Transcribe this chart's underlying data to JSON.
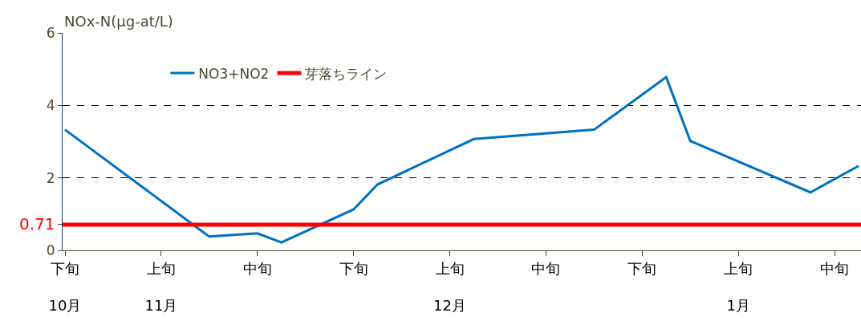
{
  "chart_data": {
    "type": "line",
    "ylabel": "NOx-N(μg-at/L)",
    "categories": [
      "下旬\n10月",
      null,
      null,
      null,
      "上旬\n11月",
      null,
      null,
      null,
      "中旬",
      null,
      null,
      null,
      "下旬",
      null,
      null,
      null,
      "上旬\n12月",
      null,
      null,
      null,
      "中旬",
      null,
      null,
      null,
      "下旬",
      null,
      null,
      null,
      "上旬\n1月",
      null,
      null,
      null,
      "中旬",
      null
    ],
    "ylim": [
      0,
      6
    ],
    "yticks": [
      0,
      {
        "value": 0.71,
        "label": "0.71"
      },
      2,
      4,
      6
    ],
    "grid": "y",
    "legend": "top left",
    "series": [
      {
        "name": "NO3+NO2",
        "color": "#0070c0",
        "values": [
          3.33,
          null,
          null,
          null,
          null,
          null,
          0.38,
          null,
          0.47,
          0.22,
          null,
          null,
          1.13,
          1.82,
          null,
          null,
          null,
          3.07,
          null,
          null,
          null,
          null,
          3.33,
          null,
          null,
          4.78,
          3.02,
          null,
          null,
          null,
          null,
          1.6,
          null,
          2.33
        ]
      }
    ],
    "ref_lines": [
      {
        "axis": "y",
        "value": 0.71,
        "label": "芽落ちライン",
        "color": "#ff0000"
      }
    ]
  }
}
